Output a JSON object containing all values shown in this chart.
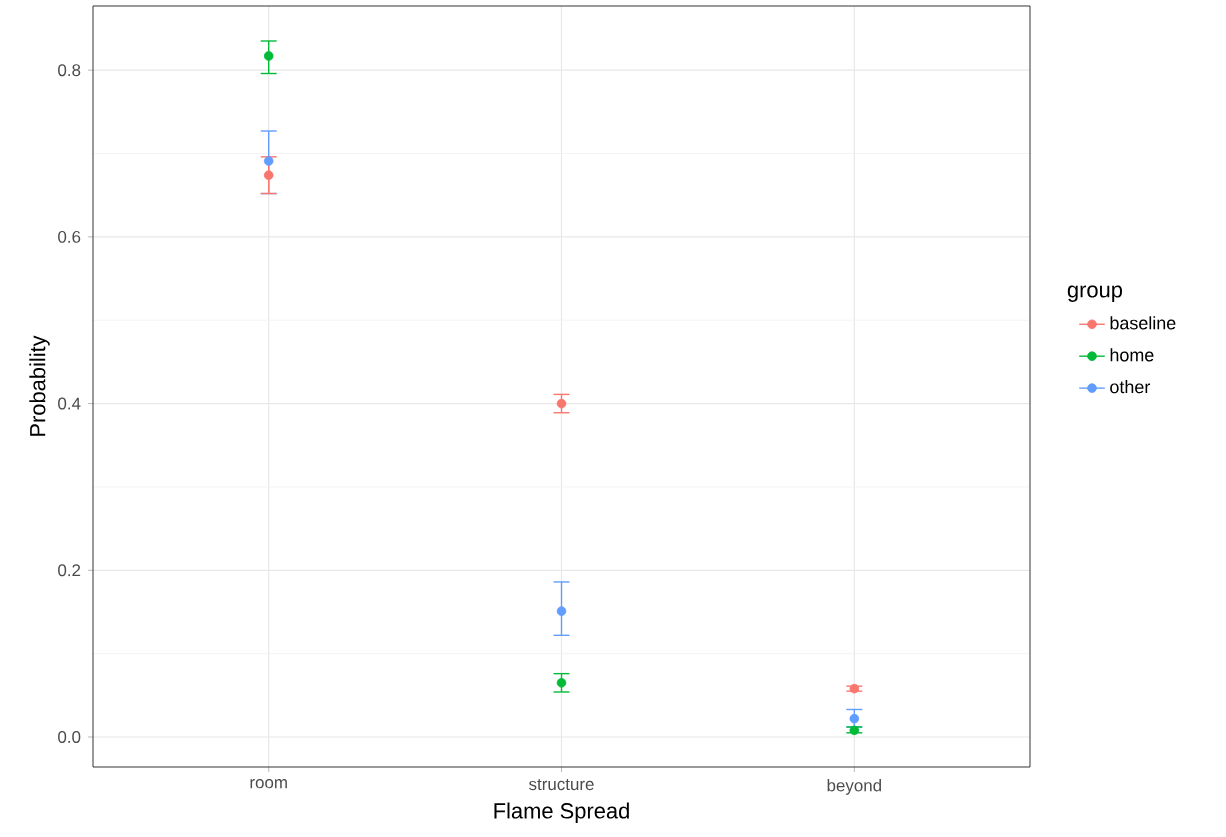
{
  "chart_data": {
    "type": "scatter",
    "xlabel": "Flame Spread",
    "ylabel": "Probability",
    "legend_title": "group",
    "categories": [
      "room",
      "structure",
      "beyond"
    ],
    "series": [
      {
        "name": "baseline",
        "color": "#f8766d",
        "values": [
          0.674,
          0.4,
          0.058
        ],
        "errors": [
          [
            0.652,
            0.696
          ],
          [
            0.389,
            0.411
          ],
          [
            0.055,
            0.061
          ]
        ]
      },
      {
        "name": "home",
        "color": "#00ba38",
        "values": [
          0.817,
          0.065,
          0.008
        ],
        "errors": [
          [
            0.796,
            0.835
          ],
          [
            0.054,
            0.076
          ],
          [
            0.005,
            0.012
          ]
        ]
      },
      {
        "name": "other",
        "color": "#619cff",
        "values": [
          0.691,
          0.151,
          0.022
        ],
        "errors": [
          [
            0.652,
            0.727
          ],
          [
            0.122,
            0.186
          ],
          [
            0.012,
            0.033
          ]
        ]
      }
    ],
    "ylim": [
      -0.036,
      0.877
    ],
    "yticks": [
      {
        "value": 0,
        "label": "0.0"
      },
      {
        "value": 0.2,
        "label": "0.2"
      },
      {
        "value": 0.4,
        "label": "0.4"
      },
      {
        "value": 0.6,
        "label": "0.6"
      },
      {
        "value": 0.8,
        "label": "0.8"
      }
    ],
    "grid": true,
    "legend": "right",
    "marker": "circle"
  }
}
